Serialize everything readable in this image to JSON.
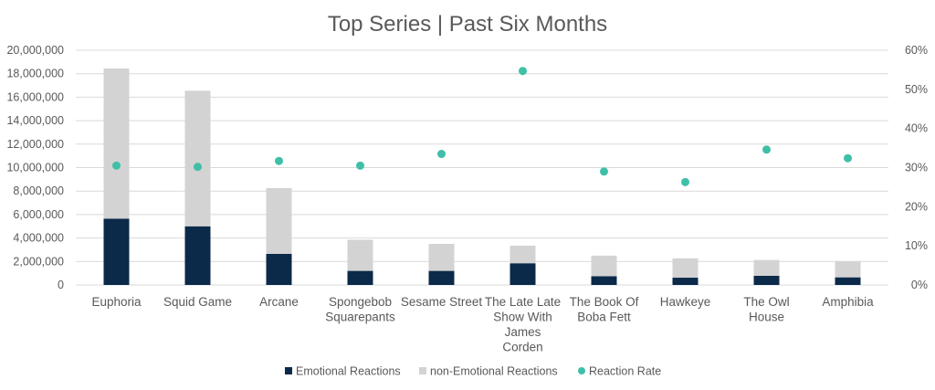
{
  "chart_data": {
    "type": "bar",
    "title": "Top Series | Past Six Months",
    "categories": [
      "Euphoria",
      "Squid Game",
      "Arcane",
      "Spongebob Squarepants",
      "Sesame Street",
      "The Late Late Show With James Corden",
      "The Book Of Boba Fett",
      "Hawkeye",
      "The Owl House",
      "Amphibia"
    ],
    "category_lines": [
      [
        "Euphoria"
      ],
      [
        "Squid Game"
      ],
      [
        "Arcane"
      ],
      [
        "Spongebob",
        "Squarepants"
      ],
      [
        "Sesame Street"
      ],
      [
        "The Late Late",
        "Show With",
        "James",
        "Corden"
      ],
      [
        "The Book Of",
        "Boba Fett"
      ],
      [
        "Hawkeye"
      ],
      [
        "The Owl",
        "House"
      ],
      [
        "Amphibia"
      ]
    ],
    "stacked": true,
    "series": [
      {
        "name": "Emotional Reactions",
        "type": "bar",
        "axis": "left",
        "color": "#0b2a4a",
        "values": [
          5650000,
          5000000,
          2650000,
          1200000,
          1200000,
          1850000,
          750000,
          620000,
          780000,
          650000
        ]
      },
      {
        "name": "non-Emotional Reactions",
        "type": "bar",
        "axis": "left",
        "color": "#d3d3d3",
        "values": [
          12800000,
          11550000,
          5600000,
          2650000,
          2300000,
          1500000,
          1750000,
          1650000,
          1350000,
          1350000
        ]
      },
      {
        "name": "Reaction Rate",
        "type": "scatter",
        "axis": "right",
        "color": "#3fbfa8",
        "values": [
          30.5,
          30.2,
          31.7,
          30.5,
          33.5,
          54.7,
          29.0,
          26.3,
          34.6,
          32.4
        ]
      }
    ],
    "y_left": {
      "min": 0,
      "max": 20000000,
      "ticks": [
        0,
        2000000,
        4000000,
        6000000,
        8000000,
        10000000,
        12000000,
        14000000,
        16000000,
        18000000,
        20000000
      ],
      "tick_labels": [
        "0",
        "2,000,000",
        "4,000,000",
        "6,000,000",
        "8,000,000",
        "10,000,000",
        "12,000,000",
        "14,000,000",
        "16,000,000",
        "18,000,000",
        "20,000,000"
      ]
    },
    "y_right": {
      "min": 0,
      "max": 60,
      "ticks": [
        0,
        10,
        20,
        30,
        40,
        50,
        60
      ],
      "tick_labels": [
        "0%",
        "10%",
        "20%",
        "30%",
        "40%",
        "50%",
        "60%"
      ]
    },
    "grid": true,
    "legend_position": "bottom",
    "xlabel": "",
    "ylabel": ""
  }
}
